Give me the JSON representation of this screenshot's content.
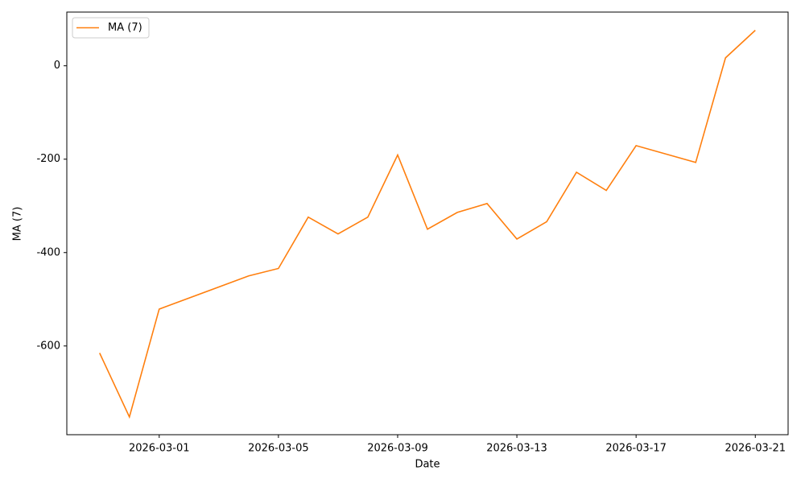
{
  "chart_data": {
    "type": "line",
    "x_label": "Date",
    "y_label": "MA (7)",
    "x": [
      "2026-02-27",
      "2026-02-28",
      "2026-03-01",
      "2026-03-04",
      "2026-03-05",
      "2026-03-06",
      "2026-03-07",
      "2026-03-08",
      "2026-03-09",
      "2026-03-10",
      "2026-03-11",
      "2026-03-12",
      "2026-03-13",
      "2026-03-14",
      "2026-03-15",
      "2026-03-16",
      "2026-03-17",
      "2026-03-19",
      "2026-03-20",
      "2026-03-21"
    ],
    "series": [
      {
        "name": "MA (7)",
        "color": "#ff7f0e",
        "values": [
          -615,
          -752,
          -521,
          -450,
          -434,
          -324,
          -360,
          -324,
          -191,
          -350,
          -314,
          -295,
          -371,
          -334,
          -228,
          -267,
          -171,
          -207,
          17,
          76
        ]
      }
    ],
    "xlim": [
      "2026-02-25T21:36",
      "2026-03-22T02:24"
    ],
    "xticks": [
      "2026-03-01",
      "2026-03-05",
      "2026-03-09",
      "2026-03-13",
      "2026-03-17",
      "2026-03-21"
    ],
    "ylim": [
      -790,
      115
    ],
    "yticks": [
      -600,
      -400,
      -200,
      0
    ],
    "legend": "upper left"
  }
}
